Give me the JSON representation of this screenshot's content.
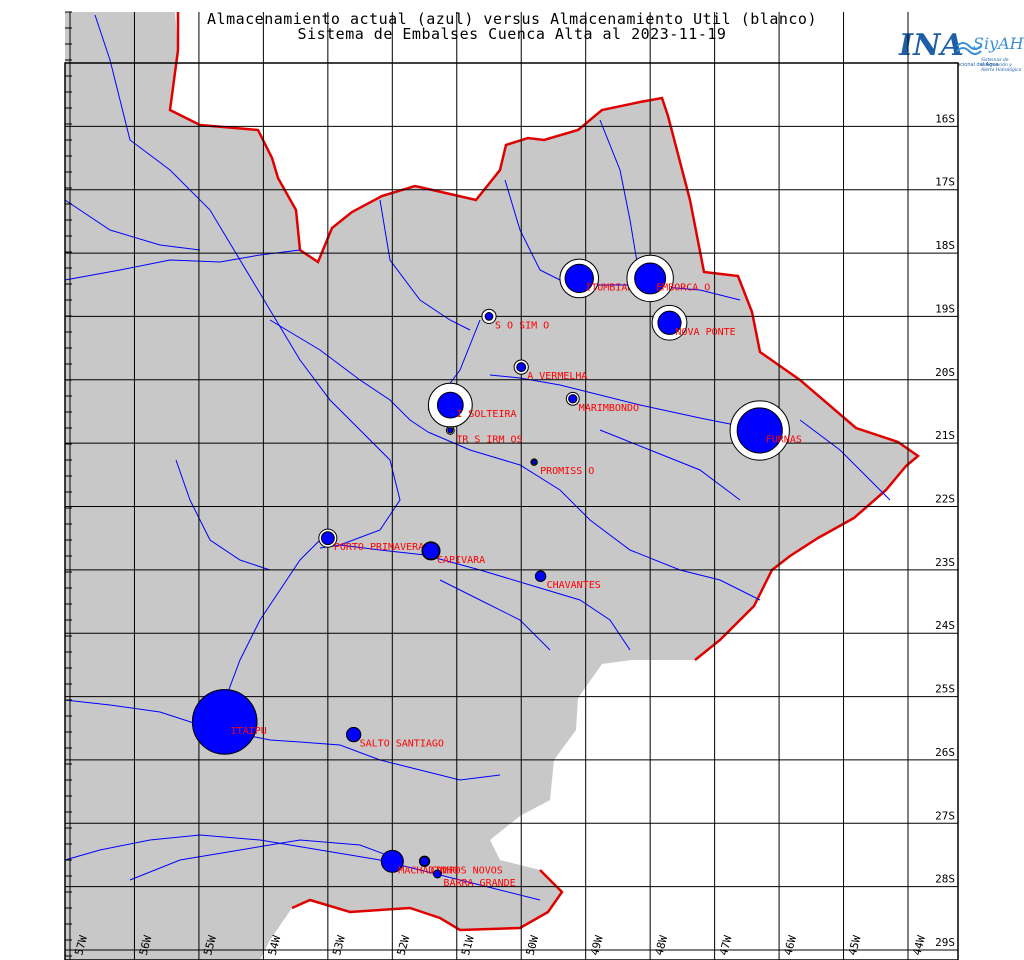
{
  "title": {
    "line1": "Almacenamiento actual (azul) versus Almacenamiento Util (blanco)",
    "line2": "Sistema de Embalses Cuenca Alta al 2023-11-19"
  },
  "logo": {
    "ina": "INA",
    "siyah": "SiyAH",
    "institute": "Instituto Nacional del Agua",
    "system": "Sistemas de Información y Alerta Hidrológico"
  },
  "colors": {
    "land": "#c8c8c8",
    "grid": "#000000",
    "border": "#e00000",
    "river": "#0000ff",
    "stored": "#0000ff",
    "capacity": "#ffffff",
    "label": "#ff0000"
  },
  "chart_data": {
    "type": "scatter",
    "lon_range": [
      -57,
      -44
    ],
    "lat_range": [
      -29,
      -15
    ],
    "lon_ticks": [
      {
        "value": -57,
        "label": "57W"
      },
      {
        "value": -56,
        "label": "56W"
      },
      {
        "value": -55,
        "label": "55W"
      },
      {
        "value": -54,
        "label": "54W"
      },
      {
        "value": -53,
        "label": "53W"
      },
      {
        "value": -52,
        "label": "52W"
      },
      {
        "value": -51,
        "label": "51W"
      },
      {
        "value": -50,
        "label": "50W"
      },
      {
        "value": -49,
        "label": "49W"
      },
      {
        "value": -48,
        "label": "48W"
      },
      {
        "value": -47,
        "label": "47W"
      },
      {
        "value": -46,
        "label": "46W"
      },
      {
        "value": -45,
        "label": "45W"
      },
      {
        "value": -44,
        "label": "44W"
      }
    ],
    "lat_ticks": [
      {
        "value": -16,
        "label": "16S"
      },
      {
        "value": -17,
        "label": "17S"
      },
      {
        "value": -18,
        "label": "18S"
      },
      {
        "value": -19,
        "label": "19S"
      },
      {
        "value": -20,
        "label": "20S"
      },
      {
        "value": -21,
        "label": "21S"
      },
      {
        "value": -22,
        "label": "22S"
      },
      {
        "value": -23,
        "label": "23S"
      },
      {
        "value": -24,
        "label": "24S"
      },
      {
        "value": -25,
        "label": "25S"
      },
      {
        "value": -26,
        "label": "26S"
      },
      {
        "value": -27,
        "label": "27S"
      },
      {
        "value": -28,
        "label": "28S"
      },
      {
        "value": -29,
        "label": "29S"
      }
    ],
    "reservoirs": [
      {
        "name": "ITUMBIARA",
        "lon": -49.1,
        "lat": -18.4,
        "capacity": 0.3,
        "stored": 0.22
      },
      {
        "name": "EMBORCA  O",
        "lon": -48.0,
        "lat": -18.4,
        "capacity": 0.36,
        "stored": 0.24
      },
      {
        "name": "NOVA PONTE",
        "lon": -47.7,
        "lat": -19.1,
        "capacity": 0.27,
        "stored": 0.18
      },
      {
        "name": "S  O SIM  O",
        "lon": -50.5,
        "lat": -19.0,
        "capacity": 0.11,
        "stored": 0.06
      },
      {
        "name": "A  VERMELHA",
        "lon": -50.0,
        "lat": -19.8,
        "capacity": 0.11,
        "stored": 0.07
      },
      {
        "name": "MARIMBONDO",
        "lon": -49.2,
        "lat": -20.3,
        "capacity": 0.1,
        "stored": 0.065
      },
      {
        "name": "I  SOLTEIRA",
        "lon": -51.1,
        "lat": -20.4,
        "capacity": 0.34,
        "stored": 0.2
      },
      {
        "name": "TR  S IRM  OS",
        "lon": -51.1,
        "lat": -20.8,
        "capacity": 0.06,
        "stored": 0.04
      },
      {
        "name": "FURNAS",
        "lon": -46.3,
        "lat": -20.8,
        "capacity": 0.46,
        "stored": 0.35
      },
      {
        "name": "PROMISS  O",
        "lon": -49.8,
        "lat": -21.3,
        "capacity": 0.05,
        "stored": 0.035
      },
      {
        "name": "PORTO PRIMAVERA",
        "lon": -53.0,
        "lat": -22.5,
        "capacity": 0.14,
        "stored": 0.1
      },
      {
        "name": "CAPIVARA",
        "lon": -51.4,
        "lat": -22.7,
        "capacity": 0.14,
        "stored": 0.13
      },
      {
        "name": "CHAVANTES",
        "lon": -49.7,
        "lat": -23.1,
        "capacity": 0.08,
        "stored": 0.08
      },
      {
        "name": "ITAIPU",
        "lon": -54.6,
        "lat": -25.4,
        "capacity": 0.5,
        "stored": 0.5
      },
      {
        "name": "SALTO SANTIAGO",
        "lon": -52.6,
        "lat": -25.6,
        "capacity": 0.11,
        "stored": 0.11
      },
      {
        "name": "MACHADINHO",
        "lon": -52.0,
        "lat": -27.6,
        "capacity": 0.17,
        "stored": 0.17
      },
      {
        "name": "CAMPOS NOVOS",
        "lon": -51.5,
        "lat": -27.6,
        "capacity": 0.08,
        "stored": 0.07
      },
      {
        "name": "BARRA GRANDE",
        "lon": -51.3,
        "lat": -27.8,
        "capacity": 0.06,
        "stored": 0.06
      }
    ]
  }
}
